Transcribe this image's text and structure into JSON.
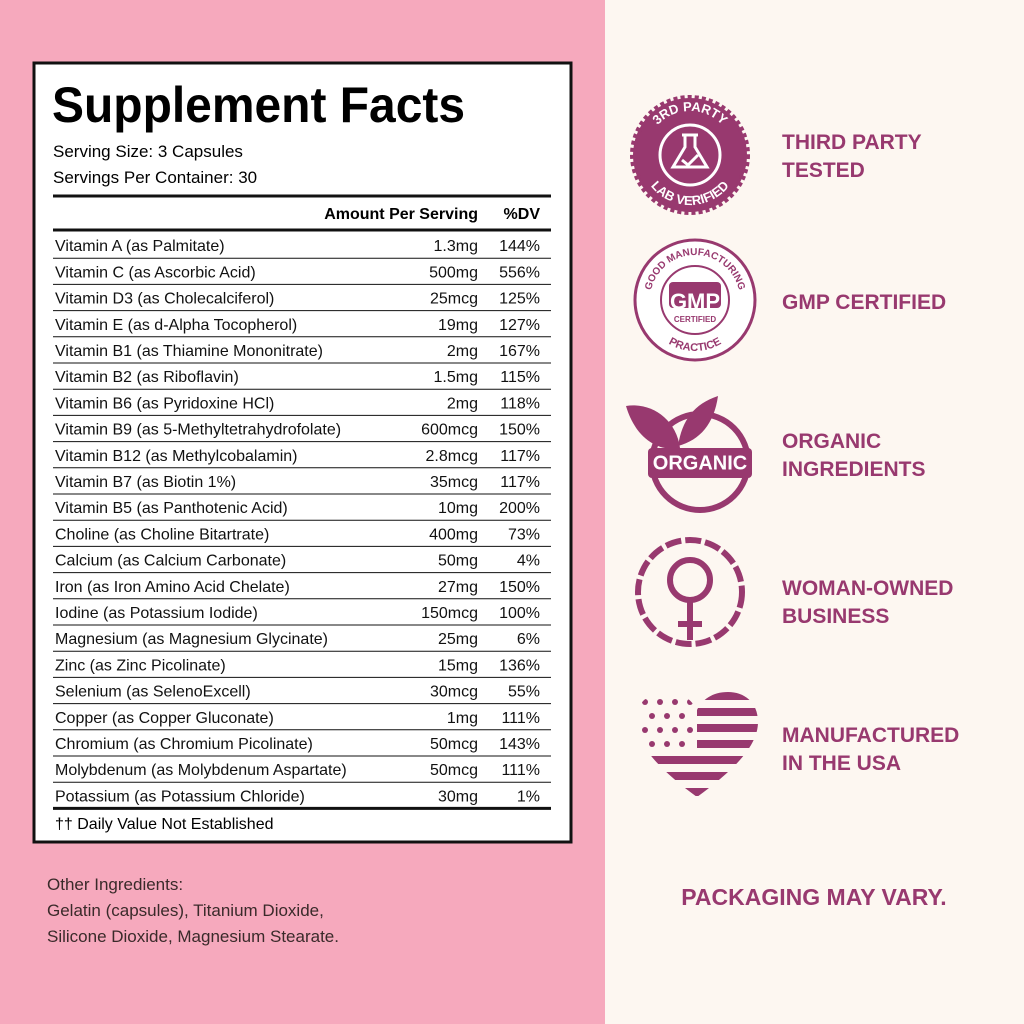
{
  "panel": {
    "title": "Supplement Facts",
    "serving_size": "Serving Size: 3 Capsules",
    "servings_per_container": "Servings Per Container: 30",
    "header": [
      "Amount Per Serving",
      "%DV"
    ],
    "rows": [
      [
        "Vitamin A (as Palmitate)",
        "1.3mg",
        "144%"
      ],
      [
        "Vitamin C (as Ascorbic Acid)",
        "500mg",
        "556%"
      ],
      [
        "Vitamin D3 (as Cholecalciferol)",
        "25mcg",
        "125%"
      ],
      [
        "Vitamin E (as d-Alpha Tocopherol)",
        "19mg",
        "127%"
      ],
      [
        "Vitamin B1 (as Thiamine Mononitrate)",
        "2mg",
        "167%"
      ],
      [
        "Vitamin B2 (as Riboflavin)",
        "1.5mg",
        "115%"
      ],
      [
        "Vitamin B6 (as Pyridoxine HCl)",
        "2mg",
        "118%"
      ],
      [
        "Vitamin B9 (as 5-Methyltetrahydrofolate)",
        "600mcg",
        "150%"
      ],
      [
        "Vitamin B12 (as Methylcobalamin)",
        "2.8mcg",
        "117%"
      ],
      [
        "Vitamin B7 (as Biotin 1%)",
        "35mcg",
        "117%"
      ],
      [
        "Vitamin B5 (as Panthotenic Acid)",
        "10mg",
        "200%"
      ],
      [
        "Choline (as Choline Bitartrate)",
        "400mg",
        "73%"
      ],
      [
        "Calcium (as Calcium Carbonate)",
        "50mg",
        "4%"
      ],
      [
        "Iron (as Iron Amino Acid Chelate)",
        "27mg",
        "150%"
      ],
      [
        "Iodine (as Potassium Iodide)",
        "150mcg",
        "100%"
      ],
      [
        "Magnesium (as Magnesium Glycinate)",
        "25mg",
        "6%"
      ],
      [
        "Zinc (as Zinc Picolinate)",
        "15mg",
        "136%"
      ],
      [
        "Selenium (as SelenoExcell)",
        "30mcg",
        "55%"
      ],
      [
        "Copper (as Copper Gluconate)",
        "1mg",
        "111%"
      ],
      [
        "Chromium (as Chromium Picolinate)",
        "50mcg",
        "143%"
      ],
      [
        "Molybdenum (as Molybdenum Aspartate)",
        "50mcg",
        "111%"
      ],
      [
        "Potassium (as Potassium Chloride)",
        "30mg",
        "1%"
      ]
    ],
    "footnote": "†† Daily Value Not Established"
  },
  "other_ingredients": [
    "Other Ingredients:",
    "Gelatin (capsules), Titanium Dioxide,",
    "Silicone Dioxide, Magnesium Stearate."
  ],
  "badges": [
    {
      "label": [
        "THIRD PARTY",
        "TESTED"
      ],
      "icon_text": [
        "3RD PARTY",
        "LAB VERIFIED"
      ]
    },
    {
      "label": [
        "GMP CERTIFIED"
      ],
      "icon_text": [
        "GOOD MANUFACTURING",
        "PRACTICE",
        "GMP",
        "CERTIFIED"
      ]
    },
    {
      "label": [
        "ORGANIC",
        "INGREDIENTS"
      ],
      "icon_text": [
        "ORGANIC"
      ]
    },
    {
      "label": [
        "WOMAN-OWNED",
        "BUSINESS"
      ]
    },
    {
      "label": [
        "MANUFACTURED",
        "IN THE USA"
      ]
    }
  ],
  "note": "PACKAGING MAY VARY."
}
